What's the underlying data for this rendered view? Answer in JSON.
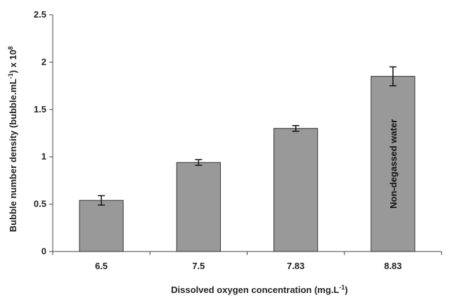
{
  "chart_data": {
    "type": "bar",
    "categories": [
      "6.5",
      "7.5",
      "7.83",
      "8.83"
    ],
    "values": [
      0.54,
      0.94,
      1.3,
      1.85
    ],
    "errors": [
      0.05,
      0.03,
      0.03,
      0.1
    ],
    "ylim": [
      0,
      2.5
    ],
    "yticks": [
      "0",
      "0.5",
      "1",
      "1.5",
      "2",
      "2.5"
    ],
    "xlabel_main": "Dissolved oxygen concentration (mg.L",
    "xlabel_sup": "-1",
    "xlabel_close": ")",
    "ylabel_main": "Bubble number density (bubble.mL",
    "ylabel_sup1": "-1",
    "ylabel_mid": ") x 10",
    "ylabel_sup2": "8",
    "annotation": {
      "category_index": 3,
      "text": "Non-degassed water"
    },
    "bar_color": "#999999",
    "grid": false
  }
}
